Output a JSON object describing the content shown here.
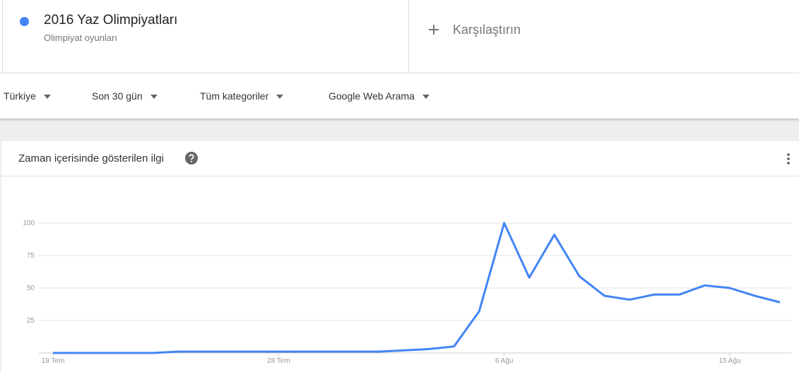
{
  "search_term": {
    "title": "2016 Yaz Olimpiyatları",
    "subtitle": "Olimpiyat oyunları"
  },
  "compare": "Karşılaştırın",
  "filters": [
    "Türkiye",
    "Son 30 gün",
    "Tüm kategoriler",
    "Google Web Arama"
  ],
  "card": {
    "title": "Zaman içerisinde gösterilen ilgi"
  },
  "chart_data": {
    "type": "line",
    "categories": [
      "19 Tem",
      null,
      null,
      null,
      null,
      null,
      null,
      null,
      null,
      "28 Tem",
      null,
      null,
      null,
      null,
      null,
      null,
      null,
      null,
      "6 Ağu",
      null,
      null,
      null,
      null,
      null,
      null,
      null,
      null,
      "15 Ağu",
      null,
      null
    ],
    "series": [
      {
        "name": "2016 Yaz Olimpiyatları",
        "color": "#4285f4",
        "values": [
          0,
          0,
          0,
          0,
          0,
          1,
          1,
          1,
          1,
          1,
          1,
          1,
          1,
          1,
          2,
          3,
          5,
          32,
          100,
          58,
          91,
          59,
          44,
          41,
          45,
          45,
          52,
          50,
          44,
          39
        ]
      }
    ],
    "ylim": [
      0,
      100
    ],
    "yticks": [
      25,
      50,
      75,
      100
    ],
    "grid": true
  }
}
